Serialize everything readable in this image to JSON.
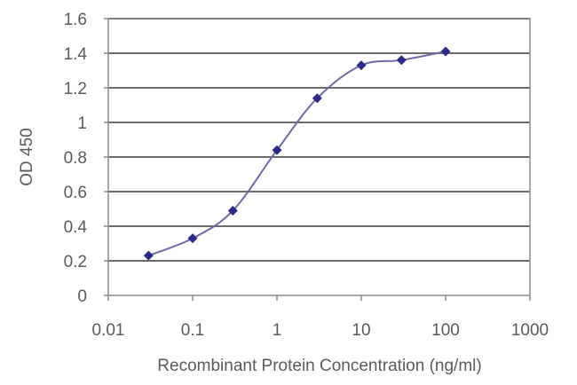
{
  "chart_data": {
    "type": "scatter",
    "title": "",
    "xlabel": "Recombinant Protein Concentration (ng/ml)",
    "ylabel": "OD 450",
    "x_scale": "log",
    "xlim": [
      0.01,
      1000
    ],
    "ylim": [
      0,
      1.6
    ],
    "x_ticks": [
      0.01,
      0.1,
      1,
      10,
      100,
      1000
    ],
    "x_tick_labels": [
      "0.01",
      "0.1",
      "1",
      "10",
      "100",
      "1000"
    ],
    "y_ticks": [
      0,
      0.2,
      0.4,
      0.6,
      0.8,
      1,
      1.2,
      1.4,
      1.6
    ],
    "y_tick_labels": [
      "0",
      "0.2",
      "0.4",
      "0.6",
      "0.8",
      "1",
      "1.2",
      "1.4",
      "1.6"
    ],
    "grid": true,
    "legend": "none",
    "series": [
      {
        "x": [
          0.03,
          0.1,
          0.3,
          1,
          3,
          10,
          30,
          100
        ],
        "y": [
          0.23,
          0.33,
          0.49,
          0.84,
          1.14,
          1.33,
          1.36,
          1.41
        ],
        "marker": "diamond",
        "line": "smooth",
        "color": "#2b2b86"
      }
    ]
  }
}
